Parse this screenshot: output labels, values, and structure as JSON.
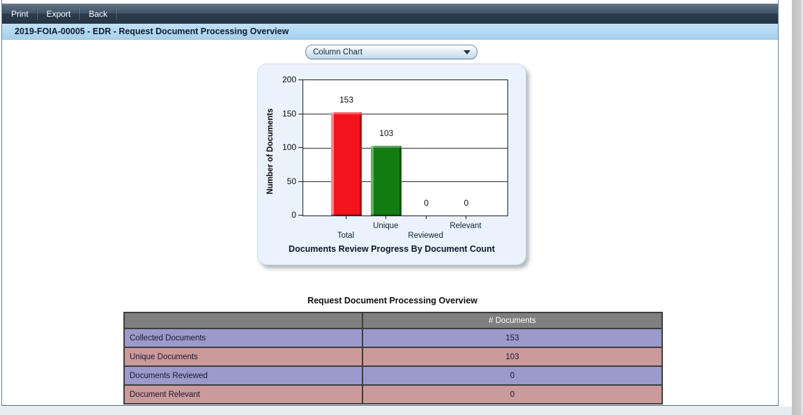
{
  "toolbar": {
    "items": [
      {
        "id": "print",
        "label": "Print"
      },
      {
        "id": "export",
        "label": "Export"
      },
      {
        "id": "back",
        "label": "Back"
      }
    ]
  },
  "header": {
    "title": "2019-FOIA-00005 - EDR - Request Document Processing Overview"
  },
  "chart_type_dropdown": {
    "selected": "Column Chart"
  },
  "chart_data": {
    "type": "bar",
    "categories": [
      "Total",
      "Unique",
      "Reviewed",
      "Relevant"
    ],
    "values": [
      153,
      103,
      0,
      0
    ],
    "value_labels": [
      "153",
      "103",
      "0",
      "0"
    ],
    "colors": [
      "#f2131c",
      "#127c12",
      null,
      null
    ],
    "colors_light": [
      "#fb848a",
      "#6ab06a",
      null,
      null
    ],
    "colors_dark": [
      "#b50d13",
      "#0a560a",
      null,
      null
    ],
    "title": "",
    "xlabel": "Documents Review Progress By Document Count",
    "ylabel": "Number of Documents",
    "ylim": [
      0,
      200
    ],
    "yticks": [
      0,
      50,
      100,
      150,
      200
    ],
    "grid": true,
    "legend": false
  },
  "table": {
    "title": "Request Document Processing Overview",
    "columns": [
      "",
      "# Documents"
    ],
    "rows": [
      {
        "label": "Collected Documents",
        "value": "153"
      },
      {
        "label": "Unique Documents",
        "value": "103"
      },
      {
        "label": "Documents Reviewed",
        "value": "0"
      },
      {
        "label": "Document Relevant",
        "value": "0"
      }
    ]
  },
  "colors": {
    "bar_red": "#f2131c",
    "bar_green": "#127c12",
    "table_row_purple": "#9b9acb",
    "table_row_pink": "#cb9a9b",
    "table_header_gray": "#7f7f7f",
    "header_bar_blue": "#a6d1ed",
    "toolbar_dark": "#2c3c4d",
    "frame_border": "#5f81a0"
  }
}
